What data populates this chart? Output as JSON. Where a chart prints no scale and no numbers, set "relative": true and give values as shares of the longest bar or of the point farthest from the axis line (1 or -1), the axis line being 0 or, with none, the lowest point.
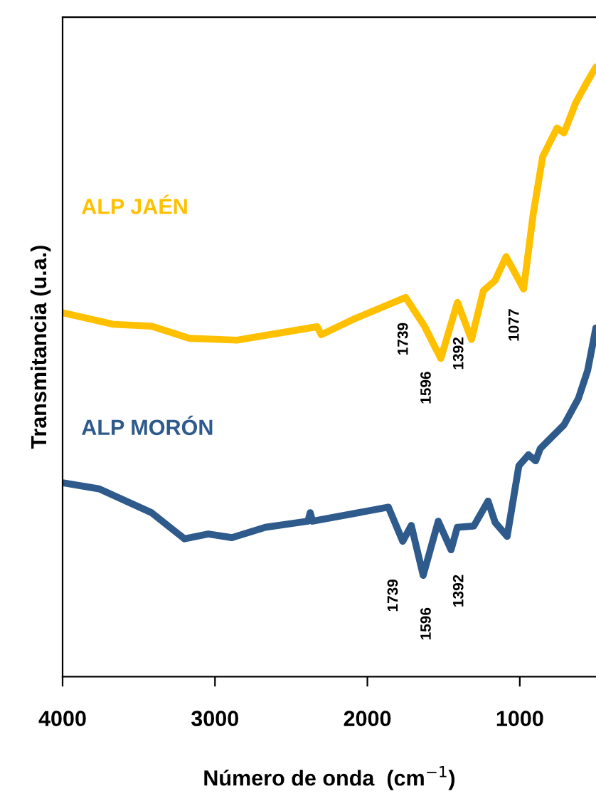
{
  "chart_data": {
    "type": "line",
    "relative": true,
    "xlabel": "Número de onda  (cm$^{−1}$)",
    "ylabel": "Transmitancia (u.a.)",
    "xlim": [
      4000,
      500
    ],
    "xticks": [
      4000,
      3000,
      2000,
      1000
    ],
    "grid": false,
    "legend": false,
    "marker": "none",
    "line_style": "solid",
    "series": [
      {
        "name": "ALP JAÉN",
        "color": "#ffc000",
        "x": [
          4000,
          3667,
          3417,
          3169,
          2857,
          2546,
          2329,
          2303,
          2076,
          1749,
          1628,
          1518,
          1409,
          1317,
          1239,
          1162,
          1090,
          975,
          912,
          850,
          756,
          710,
          632,
          555,
          501
        ],
        "values": [
          0.597,
          0.578,
          0.575,
          0.555,
          0.552,
          0.565,
          0.574,
          0.561,
          0.588,
          0.622,
          0.576,
          0.522,
          0.614,
          0.553,
          0.633,
          0.65,
          0.689,
          0.636,
          0.759,
          0.853,
          0.9,
          0.892,
          0.942,
          0.977,
          1.0
        ]
      },
      {
        "name": "ALP MORÓN",
        "color": "#2e5a8c",
        "x": [
          4000,
          3760,
          3417,
          3200,
          3044,
          2889,
          2670,
          2390,
          2375,
          2360,
          1862,
          1768,
          1712,
          1634,
          1535,
          1451,
          1410,
          1302,
          1208,
          1162,
          1083,
          1006,
          943,
          896,
          866,
          710,
          616,
          555,
          501
        ],
        "values": [
          0.318,
          0.308,
          0.269,
          0.226,
          0.234,
          0.228,
          0.245,
          0.255,
          0.269,
          0.255,
          0.278,
          0.222,
          0.248,
          0.166,
          0.255,
          0.208,
          0.245,
          0.247,
          0.288,
          0.253,
          0.23,
          0.346,
          0.364,
          0.354,
          0.374,
          0.413,
          0.456,
          0.502,
          0.572
        ]
      }
    ],
    "annotations": [
      "1739",
      "1596",
      "1392",
      "1077",
      "1739",
      "1596",
      "1392"
    ]
  }
}
